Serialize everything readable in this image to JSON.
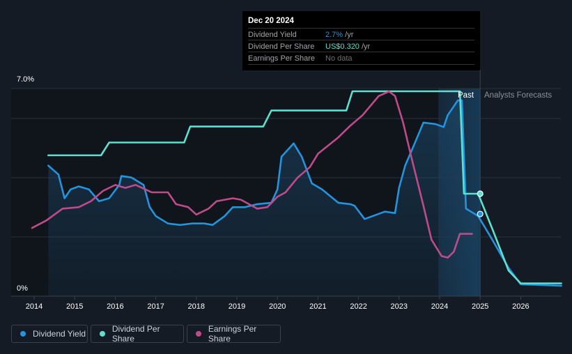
{
  "chart_data": {
    "type": "line",
    "title": "",
    "xlabel": "",
    "ylabel": "",
    "x_ticks": [
      "2014",
      "2015",
      "2016",
      "2017",
      "2018",
      "2019",
      "2020",
      "2021",
      "2022",
      "2023",
      "2024",
      "2025",
      "2026"
    ],
    "y_ticks": [
      "0%",
      "7.0%"
    ],
    "ylim": [
      0,
      7.0
    ],
    "xlim": [
      2013.55,
      2027.0
    ],
    "grid": true,
    "legend_placement": "bottom-left",
    "sections": {
      "past": "Past",
      "forecast": "Analysts Forecasts",
      "forecast_start": 2025.0,
      "highlight_start": 2023.97
    },
    "series": [
      {
        "name": "Dividend Yield",
        "color": "#2394df",
        "unit": "%",
        "x": [
          2014.35,
          2014.6,
          2014.75,
          2014.9,
          2015.1,
          2015.35,
          2015.6,
          2015.85,
          2016.1,
          2016.15,
          2016.4,
          2016.7,
          2016.85,
          2017.0,
          2017.3,
          2017.6,
          2017.9,
          2018.2,
          2018.4,
          2018.7,
          2018.9,
          2019.2,
          2019.5,
          2019.85,
          2020.0,
          2020.1,
          2020.4,
          2020.6,
          2020.85,
          2021.1,
          2021.5,
          2021.8,
          2021.9,
          2022.15,
          2022.45,
          2022.65,
          2022.9,
          2023.0,
          2023.15,
          2023.4,
          2023.6,
          2023.9,
          2024.1,
          2024.2,
          2024.45,
          2024.55,
          2024.65,
          2024.95,
          2025.3,
          2025.7,
          2026.0,
          2027.0
        ],
        "y": [
          4.4,
          4.1,
          3.3,
          3.6,
          3.7,
          3.6,
          3.2,
          3.3,
          3.75,
          4.05,
          4.0,
          3.75,
          3.0,
          2.7,
          2.45,
          2.4,
          2.45,
          2.45,
          2.4,
          2.7,
          3.0,
          3.0,
          3.1,
          3.15,
          3.6,
          4.7,
          5.15,
          4.7,
          3.8,
          3.6,
          3.15,
          3.1,
          3.05,
          2.6,
          2.75,
          2.85,
          2.8,
          3.65,
          4.4,
          5.2,
          5.85,
          5.8,
          5.7,
          6.1,
          6.6,
          6.6,
          2.95,
          2.7,
          1.9,
          0.95,
          0.4,
          0.35
        ]
      },
      {
        "name": "Dividend Per Share",
        "color": "#5ee0cf",
        "unit": "US$",
        "x": [
          2014.35,
          2015.65,
          2015.85,
          2017.7,
          2017.85,
          2019.65,
          2019.85,
          2021.7,
          2021.85,
          2024.5,
          2024.6,
          2024.95,
          2025.3,
          2025.7,
          2026.0,
          2027.0
        ],
        "y": [
          0.44,
          0.44,
          0.48,
          0.48,
          0.53,
          0.53,
          0.58,
          0.58,
          0.64,
          0.64,
          0.32,
          0.32,
          0.21,
          0.08,
          0.04,
          0.04
        ]
      },
      {
        "name": "Earnings Per Share",
        "color": "#c04b8a",
        "unit": "relative",
        "x": [
          2013.95,
          2014.3,
          2014.7,
          2015.1,
          2015.4,
          2015.7,
          2016.0,
          2016.25,
          2016.5,
          2016.9,
          2017.3,
          2017.5,
          2017.8,
          2018.0,
          2018.3,
          2018.5,
          2018.9,
          2019.1,
          2019.5,
          2019.75,
          2020.0,
          2020.2,
          2020.5,
          2020.8,
          2021.0,
          2021.5,
          2021.8,
          2022.1,
          2022.5,
          2022.75,
          2022.9,
          2023.1,
          2023.3,
          2023.6,
          2023.8,
          2024.05,
          2024.2,
          2024.35,
          2024.5,
          2024.8
        ],
        "y": [
          2.3,
          2.55,
          2.95,
          3.0,
          3.2,
          3.55,
          3.75,
          3.65,
          3.75,
          3.5,
          3.5,
          3.1,
          3.0,
          2.75,
          2.95,
          3.2,
          3.3,
          3.25,
          2.95,
          3.0,
          3.35,
          3.5,
          4.0,
          4.35,
          4.8,
          5.35,
          5.75,
          6.1,
          6.75,
          6.9,
          6.75,
          5.85,
          4.7,
          3.05,
          1.9,
          1.35,
          1.3,
          1.5,
          2.1,
          2.1
        ]
      }
    ]
  },
  "tooltip": {
    "date": "Dec 20 2024",
    "rows": [
      {
        "label": "Dividend Yield",
        "value": "2.7%",
        "unit": " /yr",
        "color": "#2394df"
      },
      {
        "label": "Dividend Per Share",
        "value": "US$0.320",
        "unit": " /yr",
        "color": "#5ee0cf"
      },
      {
        "label": "Earnings Per Share",
        "value": "No data",
        "unit": "",
        "color": "#6b6f75"
      }
    ]
  },
  "legend": [
    {
      "label": "Dividend Yield",
      "color": "#2394df"
    },
    {
      "label": "Dividend Per Share",
      "color": "#5ee0cf"
    },
    {
      "label": "Earnings Per Share",
      "color": "#c04b8a"
    }
  ]
}
